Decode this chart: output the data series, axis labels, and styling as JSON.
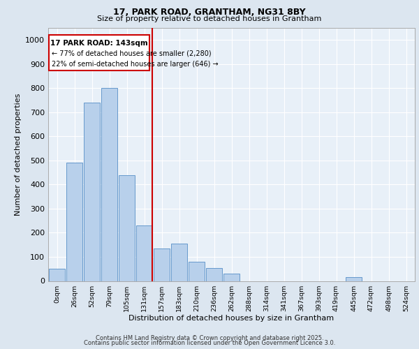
{
  "title1": "17, PARK ROAD, GRANTHAM, NG31 8BY",
  "title2": "Size of property relative to detached houses in Grantham",
  "xlabel": "Distribution of detached houses by size in Grantham",
  "ylabel": "Number of detached properties",
  "bin_labels": [
    "0sqm",
    "26sqm",
    "52sqm",
    "79sqm",
    "105sqm",
    "131sqm",
    "157sqm",
    "183sqm",
    "210sqm",
    "236sqm",
    "262sqm",
    "288sqm",
    "314sqm",
    "341sqm",
    "367sqm",
    "393sqm",
    "419sqm",
    "445sqm",
    "472sqm",
    "498sqm",
    "524sqm"
  ],
  "bar_heights": [
    50,
    490,
    740,
    800,
    440,
    230,
    135,
    155,
    80,
    55,
    30,
    0,
    0,
    0,
    0,
    0,
    0,
    15,
    0,
    0,
    0
  ],
  "bar_color": "#b8d0eb",
  "bar_edgecolor": "#6699cc",
  "vline_color": "#cc0000",
  "annotation_title": "17 PARK ROAD: 143sqm",
  "annotation_line1": "← 77% of detached houses are smaller (2,280)",
  "annotation_line2": "22% of semi-detached houses are larger (646) →",
  "annotation_box_edgecolor": "#cc0000",
  "ylim": [
    0,
    1050
  ],
  "yticks": [
    0,
    100,
    200,
    300,
    400,
    500,
    600,
    700,
    800,
    900,
    1000
  ],
  "bg_color": "#dce6f0",
  "plot_bg_color": "#e8f0f8",
  "grid_color": "#ffffff",
  "footer1": "Contains HM Land Registry data © Crown copyright and database right 2025.",
  "footer2": "Contains public sector information licensed under the Open Government Licence 3.0."
}
